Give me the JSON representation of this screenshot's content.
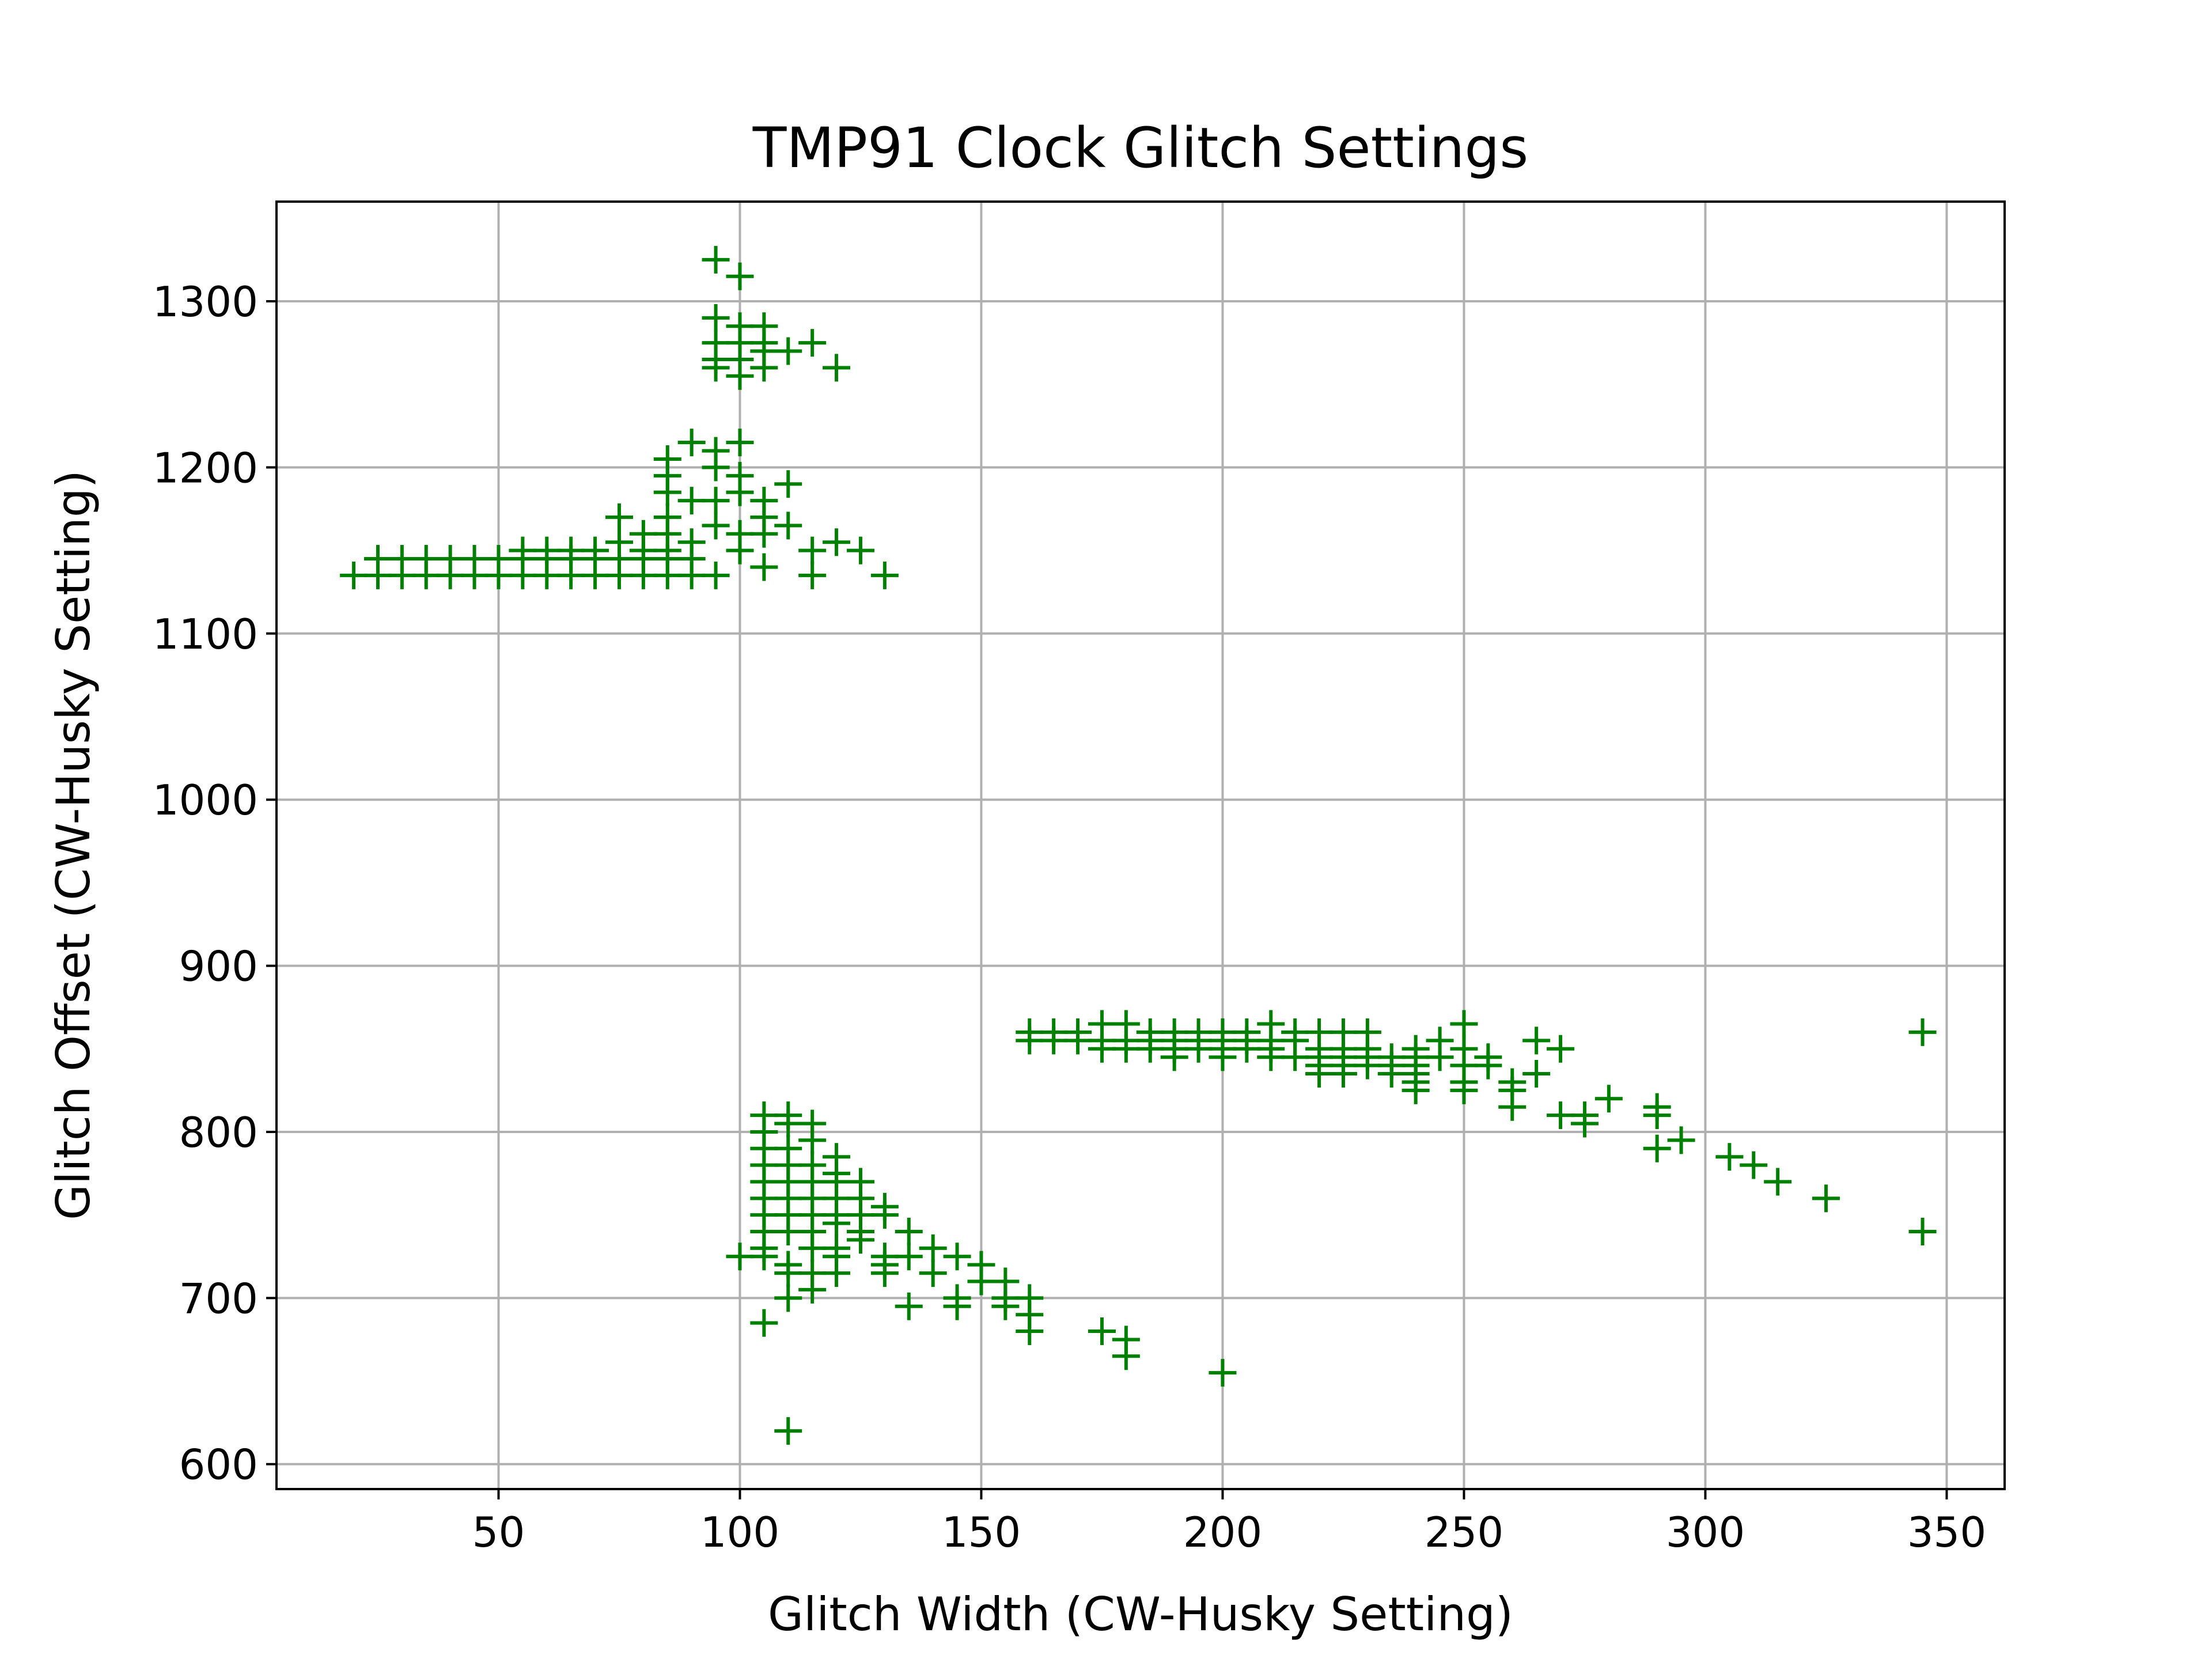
{
  "chart_data": {
    "type": "scatter",
    "title": "TMP91 Clock Glitch Settings",
    "xlabel": "Glitch Width (CW-Husky Setting)",
    "ylabel": "Glitch Offset (CW-Husky Setting)",
    "xlim": [
      4,
      362
    ],
    "ylim": [
      585,
      1360
    ],
    "xticks": [
      "50",
      "100",
      "150",
      "200",
      "250",
      "300",
      "350"
    ],
    "yticks": [
      "600",
      "700",
      "800",
      "900",
      "1000",
      "1100",
      "1200",
      "1300"
    ],
    "grid": true,
    "marker": "+",
    "color": "#008000",
    "series": [
      {
        "name": "",
        "points": [
          [
            95,
            1325
          ],
          [
            100,
            1315
          ],
          [
            95,
            1290
          ],
          [
            100,
            1285
          ],
          [
            105,
            1285
          ],
          [
            95,
            1275
          ],
          [
            100,
            1275
          ],
          [
            105,
            1275
          ],
          [
            110,
            1270
          ],
          [
            115,
            1275
          ],
          [
            95,
            1265
          ],
          [
            100,
            1265
          ],
          [
            105,
            1270
          ],
          [
            95,
            1260
          ],
          [
            100,
            1255
          ],
          [
            105,
            1260
          ],
          [
            120,
            1260
          ],
          [
            90,
            1215
          ],
          [
            95,
            1210
          ],
          [
            100,
            1215
          ],
          [
            85,
            1205
          ],
          [
            85,
            1195
          ],
          [
            95,
            1200
          ],
          [
            100,
            1195
          ],
          [
            110,
            1190
          ],
          [
            85,
            1185
          ],
          [
            90,
            1180
          ],
          [
            95,
            1180
          ],
          [
            100,
            1185
          ],
          [
            105,
            1180
          ],
          [
            75,
            1170
          ],
          [
            85,
            1170
          ],
          [
            105,
            1170
          ],
          [
            110,
            1165
          ],
          [
            80,
            1160
          ],
          [
            85,
            1160
          ],
          [
            90,
            1155
          ],
          [
            95,
            1165
          ],
          [
            100,
            1160
          ],
          [
            105,
            1160
          ],
          [
            120,
            1155
          ],
          [
            55,
            1150
          ],
          [
            60,
            1150
          ],
          [
            65,
            1150
          ],
          [
            70,
            1150
          ],
          [
            75,
            1155
          ],
          [
            80,
            1150
          ],
          [
            85,
            1150
          ],
          [
            100,
            1150
          ],
          [
            115,
            1150
          ],
          [
            125,
            1150
          ],
          [
            25,
            1145
          ],
          [
            30,
            1145
          ],
          [
            35,
            1145
          ],
          [
            40,
            1145
          ],
          [
            45,
            1145
          ],
          [
            50,
            1145
          ],
          [
            55,
            1145
          ],
          [
            60,
            1145
          ],
          [
            65,
            1145
          ],
          [
            70,
            1145
          ],
          [
            75,
            1145
          ],
          [
            80,
            1145
          ],
          [
            85,
            1145
          ],
          [
            90,
            1145
          ],
          [
            20,
            1135
          ],
          [
            25,
            1135
          ],
          [
            30,
            1135
          ],
          [
            35,
            1135
          ],
          [
            40,
            1135
          ],
          [
            45,
            1135
          ],
          [
            50,
            1135
          ],
          [
            55,
            1135
          ],
          [
            60,
            1135
          ],
          [
            65,
            1135
          ],
          [
            70,
            1135
          ],
          [
            75,
            1135
          ],
          [
            80,
            1135
          ],
          [
            85,
            1135
          ],
          [
            90,
            1135
          ],
          [
            95,
            1135
          ],
          [
            105,
            1140
          ],
          [
            115,
            1135
          ],
          [
            130,
            1135
          ],
          [
            105,
            810
          ],
          [
            110,
            810
          ],
          [
            105,
            800
          ],
          [
            110,
            805
          ],
          [
            115,
            805
          ],
          [
            105,
            790
          ],
          [
            110,
            790
          ],
          [
            115,
            795
          ],
          [
            120,
            785
          ],
          [
            105,
            780
          ],
          [
            110,
            780
          ],
          [
            115,
            780
          ],
          [
            120,
            775
          ],
          [
            105,
            770
          ],
          [
            110,
            770
          ],
          [
            115,
            770
          ],
          [
            120,
            770
          ],
          [
            125,
            770
          ],
          [
            105,
            760
          ],
          [
            110,
            760
          ],
          [
            115,
            760
          ],
          [
            120,
            760
          ],
          [
            125,
            760
          ],
          [
            130,
            755
          ],
          [
            105,
            750
          ],
          [
            110,
            750
          ],
          [
            115,
            750
          ],
          [
            120,
            750
          ],
          [
            125,
            750
          ],
          [
            130,
            750
          ],
          [
            105,
            740
          ],
          [
            110,
            740
          ],
          [
            115,
            740
          ],
          [
            120,
            745
          ],
          [
            125,
            740
          ],
          [
            135,
            740
          ],
          [
            105,
            730
          ],
          [
            115,
            730
          ],
          [
            120,
            730
          ],
          [
            125,
            735
          ],
          [
            130,
            725
          ],
          [
            140,
            730
          ],
          [
            100,
            725
          ],
          [
            105,
            725
          ],
          [
            110,
            720
          ],
          [
            120,
            725
          ],
          [
            130,
            720
          ],
          [
            135,
            725
          ],
          [
            145,
            725
          ],
          [
            150,
            720
          ],
          [
            110,
            715
          ],
          [
            115,
            715
          ],
          [
            120,
            715
          ],
          [
            130,
            715
          ],
          [
            140,
            715
          ],
          [
            150,
            710
          ],
          [
            155,
            710
          ],
          [
            110,
            700
          ],
          [
            115,
            705
          ],
          [
            135,
            695
          ],
          [
            145,
            700
          ],
          [
            145,
            695
          ],
          [
            155,
            700
          ],
          [
            160,
            700
          ],
          [
            105,
            685
          ],
          [
            155,
            695
          ],
          [
            160,
            690
          ],
          [
            160,
            680
          ],
          [
            175,
            680
          ],
          [
            180,
            675
          ],
          [
            180,
            665
          ],
          [
            200,
            655
          ],
          [
            110,
            620
          ],
          [
            160,
            860
          ],
          [
            165,
            860
          ],
          [
            170,
            860
          ],
          [
            175,
            865
          ],
          [
            180,
            865
          ],
          [
            185,
            860
          ],
          [
            190,
            860
          ],
          [
            195,
            860
          ],
          [
            200,
            860
          ],
          [
            205,
            860
          ],
          [
            210,
            865
          ],
          [
            215,
            860
          ],
          [
            220,
            860
          ],
          [
            225,
            860
          ],
          [
            230,
            860
          ],
          [
            250,
            865
          ],
          [
            160,
            855
          ],
          [
            165,
            855
          ],
          [
            170,
            855
          ],
          [
            175,
            855
          ],
          [
            180,
            855
          ],
          [
            185,
            855
          ],
          [
            190,
            855
          ],
          [
            195,
            855
          ],
          [
            200,
            855
          ],
          [
            205,
            855
          ],
          [
            210,
            855
          ],
          [
            215,
            855
          ],
          [
            245,
            855
          ],
          [
            265,
            855
          ],
          [
            175,
            850
          ],
          [
            180,
            850
          ],
          [
            185,
            850
          ],
          [
            190,
            850
          ],
          [
            195,
            850
          ],
          [
            200,
            850
          ],
          [
            205,
            850
          ],
          [
            210,
            850
          ],
          [
            220,
            850
          ],
          [
            225,
            850
          ],
          [
            230,
            850
          ],
          [
            240,
            850
          ],
          [
            250,
            850
          ],
          [
            270,
            850
          ],
          [
            190,
            845
          ],
          [
            200,
            845
          ],
          [
            210,
            845
          ],
          [
            215,
            845
          ],
          [
            220,
            845
          ],
          [
            225,
            845
          ],
          [
            230,
            845
          ],
          [
            235,
            845
          ],
          [
            240,
            845
          ],
          [
            245,
            845
          ],
          [
            255,
            845
          ],
          [
            220,
            840
          ],
          [
            225,
            840
          ],
          [
            230,
            840
          ],
          [
            235,
            840
          ],
          [
            240,
            840
          ],
          [
            250,
            840
          ],
          [
            255,
            840
          ],
          [
            220,
            835
          ],
          [
            225,
            835
          ],
          [
            235,
            835
          ],
          [
            240,
            835
          ],
          [
            265,
            835
          ],
          [
            240,
            830
          ],
          [
            250,
            830
          ],
          [
            260,
            830
          ],
          [
            250,
            825
          ],
          [
            260,
            825
          ],
          [
            240,
            825
          ],
          [
            260,
            815
          ],
          [
            270,
            810
          ],
          [
            275,
            810
          ],
          [
            275,
            805
          ],
          [
            280,
            820
          ],
          [
            290,
            815
          ],
          [
            290,
            810
          ],
          [
            295,
            795
          ],
          [
            290,
            790
          ],
          [
            305,
            785
          ],
          [
            310,
            780
          ],
          [
            315,
            770
          ],
          [
            325,
            760
          ],
          [
            345,
            860
          ],
          [
            345,
            740
          ]
        ]
      }
    ]
  }
}
